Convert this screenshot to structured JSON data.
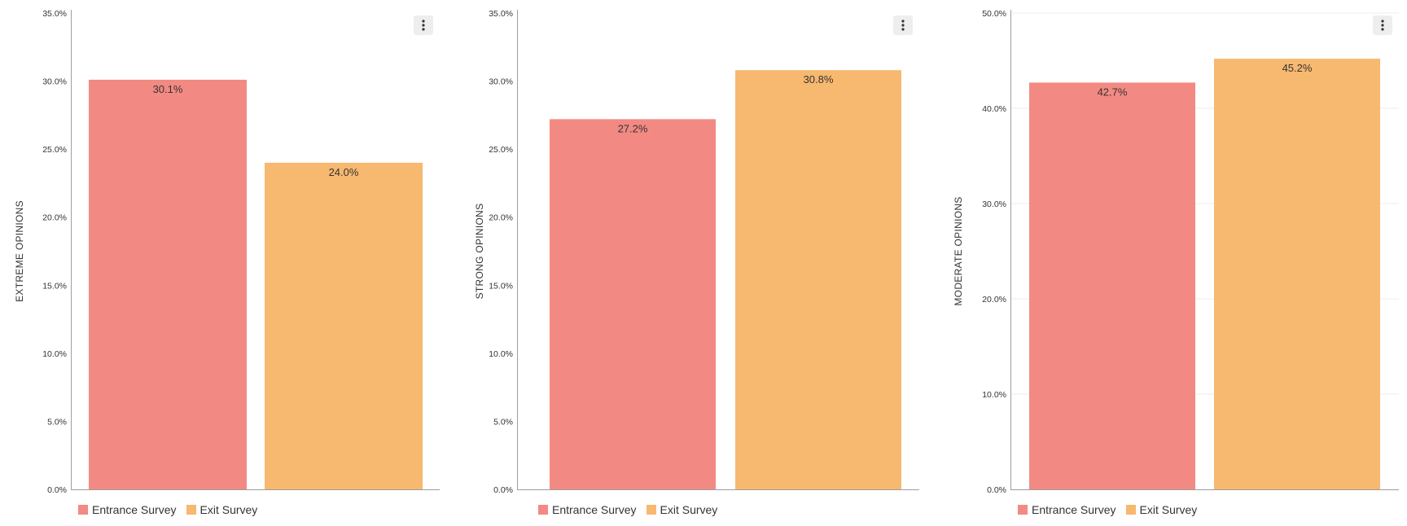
{
  "colors": {
    "entrance": "#f28a83",
    "exit": "#f7b870",
    "axis": "#9e9e9e",
    "grid": "#eeeeee",
    "text": "#333333"
  },
  "legend": {
    "entrance": "Entrance Survey",
    "exit": "Exit Survey"
  },
  "menu_icon": "more-vertical-icon",
  "chart_data": [
    {
      "type": "bar",
      "ylabel": "EXTREME OPINIONS",
      "ylim": [
        0,
        35
      ],
      "yticks": [
        "0.0%",
        "5.0%",
        "10.0%",
        "15.0%",
        "20.0%",
        "25.0%",
        "30.0%",
        "35.0%"
      ],
      "grid": false,
      "series": [
        {
          "name": "Entrance Survey",
          "values": [
            30.1
          ],
          "label": "30.1%"
        },
        {
          "name": "Exit Survey",
          "values": [
            24.0
          ],
          "label": "24.0%"
        }
      ]
    },
    {
      "type": "bar",
      "ylabel": "STRONG OPINIONS",
      "ylim": [
        0,
        35
      ],
      "yticks": [
        "0.0%",
        "5.0%",
        "10.0%",
        "15.0%",
        "20.0%",
        "25.0%",
        "30.0%",
        "35.0%"
      ],
      "grid": false,
      "series": [
        {
          "name": "Entrance Survey",
          "values": [
            27.2
          ],
          "label": "27.2%"
        },
        {
          "name": "Exit Survey",
          "values": [
            30.8
          ],
          "label": "30.8%"
        }
      ]
    },
    {
      "type": "bar",
      "ylabel": "MODERATE OPINIONS",
      "ylim": [
        0,
        50
      ],
      "yticks": [
        "0.0%",
        "10.0%",
        "20.0%",
        "30.0%",
        "40.0%",
        "50.0%"
      ],
      "grid": true,
      "series": [
        {
          "name": "Entrance Survey",
          "values": [
            42.7
          ],
          "label": "42.7%"
        },
        {
          "name": "Exit Survey",
          "values": [
            45.2
          ],
          "label": "45.2%"
        }
      ]
    }
  ]
}
